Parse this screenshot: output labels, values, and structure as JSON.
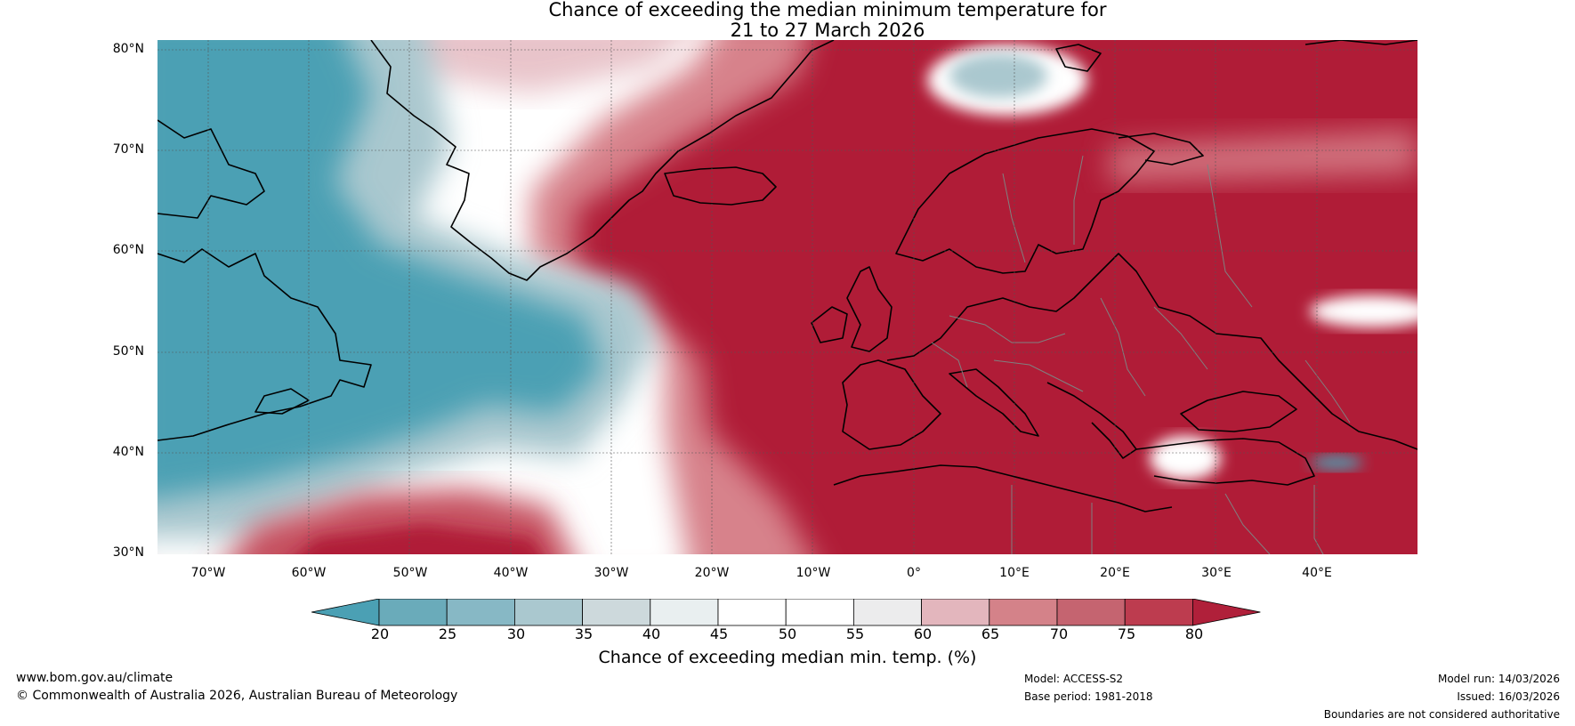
{
  "title": {
    "line1": "Chance of exceeding the median minimum temperature for",
    "line2": "21 to 27 March 2026"
  },
  "map": {
    "lat_labels": [
      "80°N",
      "70°N",
      "60°N",
      "50°N",
      "40°N",
      "30°N"
    ],
    "lon_labels": [
      "70°W",
      "60°W",
      "50°W",
      "40°W",
      "30°W",
      "20°W",
      "10°W",
      "0°",
      "10°E",
      "20°E",
      "30°E",
      "40°E"
    ],
    "lat_range": [
      30,
      81
    ],
    "lon_range": [
      -75,
      50
    ]
  },
  "colorbar": {
    "ticks": [
      "20",
      "25",
      "30",
      "35",
      "40",
      "45",
      "50",
      "55",
      "60",
      "65",
      "70",
      "75",
      "80"
    ],
    "colors": [
      "#4ba0b4",
      "#6aabba",
      "#87b8c5",
      "#aac8cf",
      "#cdd9dc",
      "#e9eff0",
      "#ffffff",
      "#ffffff",
      "#ececed",
      "#e3b6bd",
      "#d48289",
      "#c56470",
      "#bd3c4f",
      "#b0203a"
    ],
    "label": "Chance of exceeding median min. temp. (%)"
  },
  "footer": {
    "website": "www.bom.gov.au/climate",
    "copyright": "© Commonwealth of Australia 2026, Australian Bureau of Meteorology",
    "model": "Model: ACCESS-S2",
    "base_period": "Base period: 1981-2018",
    "model_run": "Model run: 14/03/2026",
    "issued": "Issued: 16/03/2026",
    "disclaimer": "Boundaries are not considered authoritative"
  },
  "colors": {
    "below": "#4ba0b4",
    "above": "#b01c37",
    "neutral": "#ffffff"
  }
}
